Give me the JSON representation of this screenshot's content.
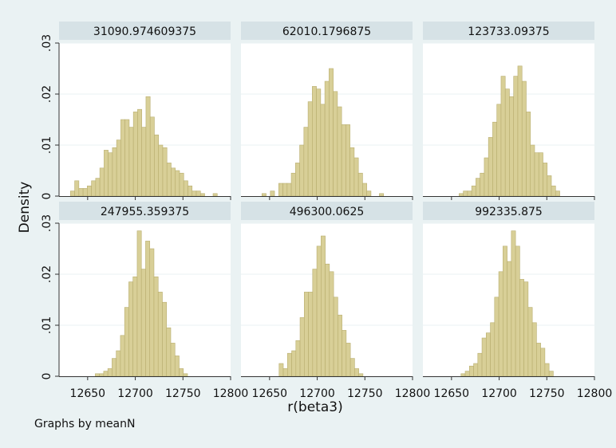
{
  "chart_data": {
    "type": "bar",
    "subtype": "histogram",
    "ylabel": "Density",
    "xlabel": "r(beta3)",
    "note": "Graphs by meanN",
    "xlim": [
      12620,
      12800
    ],
    "ylim": [
      0,
      0.03
    ],
    "bin_width": 4.4,
    "x_ticks": [
      12650,
      12700,
      12750,
      12800
    ],
    "x_tick_labels": [
      "12650",
      "12700",
      "12750",
      "12800"
    ],
    "y_ticks": [
      0,
      0.01,
      0.02,
      0.03
    ],
    "y_tick_labels": [
      "0",
      ".01",
      ".02",
      ".03"
    ],
    "grid": "horizontal",
    "colors": {
      "bar_fill": "#d8cf97",
      "bar_edge": "#b8ad6e",
      "strip_bg": "#d6e2e6",
      "plot_bg": "#ffffff",
      "outer_bg": "#eaf2f3",
      "grid": "#eaf2f3",
      "axis": "#333333"
    },
    "panels": [
      {
        "title": "31090.974609375",
        "bin_start": 12632,
        "values": [
          0.001,
          0.003,
          0.0015,
          0.0015,
          0.002,
          0.003,
          0.0035,
          0.0055,
          0.009,
          0.0085,
          0.0095,
          0.011,
          0.015,
          0.015,
          0.0135,
          0.0165,
          0.017,
          0.0135,
          0.0195,
          0.0155,
          0.012,
          0.01,
          0.0095,
          0.0065,
          0.0055,
          0.005,
          0.0045,
          0.003,
          0.002,
          0.001,
          0.001,
          0.0005,
          0,
          0,
          0.0005
        ]
      },
      {
        "title": "62010.1796875",
        "bin_start": 12642,
        "values": [
          0.0005,
          0,
          0.001,
          0,
          0.0025,
          0.0025,
          0.0025,
          0.0045,
          0.0065,
          0.01,
          0.0135,
          0.0185,
          0.0215,
          0.021,
          0.018,
          0.0225,
          0.025,
          0.0205,
          0.0175,
          0.014,
          0.014,
          0.0095,
          0.0075,
          0.0045,
          0.0025,
          0.001,
          0,
          0,
          0.0005
        ]
      },
      {
        "title": "123733.09375",
        "bin_start": 12658,
        "values": [
          0.0005,
          0.001,
          0.001,
          0.002,
          0.0035,
          0.0045,
          0.0075,
          0.0115,
          0.0145,
          0.018,
          0.0235,
          0.021,
          0.0195,
          0.0235,
          0.0255,
          0.0225,
          0.0165,
          0.01,
          0.0085,
          0.0085,
          0.0065,
          0.004,
          0.002,
          0.001
        ]
      },
      {
        "title": "247955.359375",
        "bin_start": 12658,
        "values": [
          0.0005,
          0.0005,
          0.001,
          0.0015,
          0.0035,
          0.005,
          0.008,
          0.0135,
          0.0185,
          0.0195,
          0.0285,
          0.021,
          0.0265,
          0.025,
          0.0195,
          0.0165,
          0.0145,
          0.0095,
          0.0065,
          0.004,
          0.0015,
          0.0005
        ]
      },
      {
        "title": "496300.0625",
        "bin_start": 12660,
        "values": [
          0.0025,
          0.0015,
          0.0045,
          0.005,
          0.007,
          0.0115,
          0.0165,
          0.0165,
          0.021,
          0.0255,
          0.0275,
          0.022,
          0.0205,
          0.0155,
          0.012,
          0.009,
          0.0065,
          0.0035,
          0.0015,
          0.0005
        ]
      },
      {
        "title": "992335.875",
        "bin_start": 12660,
        "values": [
          0.0005,
          0.001,
          0.002,
          0.0025,
          0.0045,
          0.0075,
          0.0085,
          0.0105,
          0.0155,
          0.0205,
          0.0255,
          0.0225,
          0.0285,
          0.0255,
          0.019,
          0.0185,
          0.0135,
          0.0105,
          0.0065,
          0.0055,
          0.0025,
          0.001
        ]
      }
    ]
  }
}
